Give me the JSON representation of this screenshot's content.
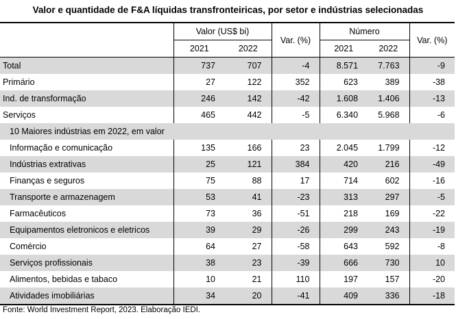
{
  "title": "Valor e quantidade de F&A líquidas transfronteiricas, por setor e indústrias selecionadas",
  "headers": {
    "valor": "Valor (US$ bi)",
    "var": "Var. (%)",
    "numero": "Número",
    "var2": "Var. (%)",
    "y2021": "2021",
    "y2022": "2022",
    "y2021b": "2021",
    "y2022b": "2022"
  },
  "rows": [
    {
      "label": "Total",
      "v21": "737",
      "v22": "707",
      "var": "-4",
      "n21": "8.571",
      "n22": "7.763",
      "nvar": "-9"
    },
    {
      "label": "Primário",
      "v21": "27",
      "v22": "122",
      "var": "352",
      "n21": "623",
      "n22": "389",
      "nvar": "-38"
    },
    {
      "label": "Ind. de transformação",
      "v21": "246",
      "v22": "142",
      "var": "-42",
      "n21": "1.608",
      "n22": "1.406",
      "nvar": "-13"
    },
    {
      "label": "Serviços",
      "v21": "465",
      "v22": "442",
      "var": "-5",
      "n21": "6.340",
      "n22": "5.968",
      "nvar": "-6"
    }
  ],
  "section_title": "10 Maiores indústrias em 2022, em valor",
  "industries": [
    {
      "label": "Informação e comunicação",
      "v21": "135",
      "v22": "166",
      "var": "23",
      "n21": "2.045",
      "n22": "1.799",
      "nvar": "-12"
    },
    {
      "label": "Indústrias extrativas",
      "v21": "25",
      "v22": "121",
      "var": "384",
      "n21": "420",
      "n22": "216",
      "nvar": "-49"
    },
    {
      "label": "Finanças e seguros",
      "v21": "75",
      "v22": "88",
      "var": "17",
      "n21": "714",
      "n22": "602",
      "nvar": "-16"
    },
    {
      "label": "Transporte e armazenagem",
      "v21": "53",
      "v22": "41",
      "var": "-23",
      "n21": "313",
      "n22": "297",
      "nvar": "-5"
    },
    {
      "label": "Farmacêuticos",
      "v21": "73",
      "v22": "36",
      "var": "-51",
      "n21": "218",
      "n22": "169",
      "nvar": "-22"
    },
    {
      "label": "Equipamentos eletronicos e eletricos",
      "v21": "39",
      "v22": "29",
      "var": "-26",
      "n21": "299",
      "n22": "243",
      "nvar": "-19"
    },
    {
      "label": "Comércio",
      "v21": "64",
      "v22": "27",
      "var": "-58",
      "n21": "643",
      "n22": "592",
      "nvar": "-8"
    },
    {
      "label": "Serviços profissionais",
      "v21": "38",
      "v22": "23",
      "var": "-39",
      "n21": "666",
      "n22": "730",
      "nvar": "10"
    },
    {
      "label": "Alimentos, bebidas e tabaco",
      "v21": "10",
      "v22": "21",
      "var": "110",
      "n21": "197",
      "n22": "157",
      "nvar": "-20"
    },
    {
      "label": "Atividades imobiliárias",
      "v21": "34",
      "v22": "20",
      "var": "-41",
      "n21": "409",
      "n22": "336",
      "nvar": "-18"
    }
  ],
  "source": "Fonte: World Investment Report, 2023. Elaboração IEDI."
}
